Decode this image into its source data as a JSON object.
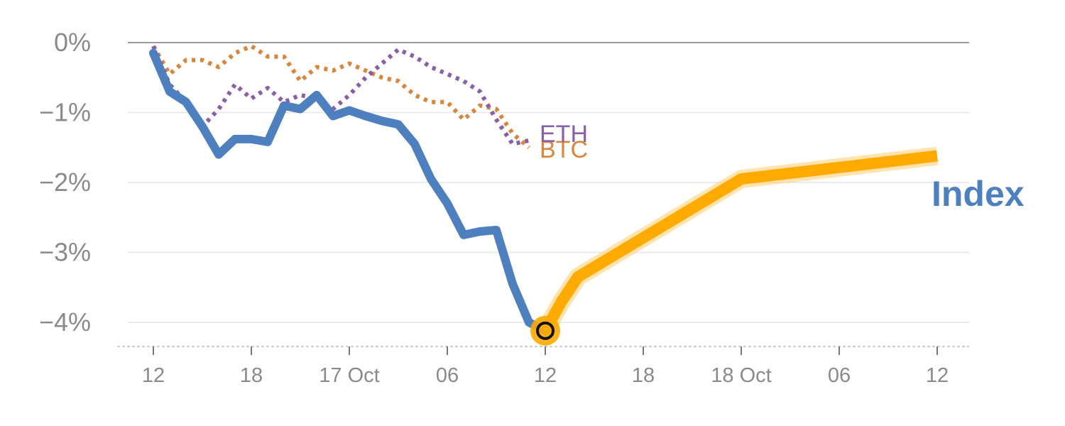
{
  "chart_data": {
    "type": "line",
    "title": "",
    "xlabel": "",
    "ylabel": "",
    "ylim": [
      -4.3,
      0
    ],
    "y_ticks": [
      {
        "value": 0,
        "label": "0%"
      },
      {
        "value": -1,
        "label": "−1%"
      },
      {
        "value": -2,
        "label": "−2%"
      },
      {
        "value": -3,
        "label": "−3%"
      },
      {
        "value": -4,
        "label": "−4%"
      }
    ],
    "x_ticks": [
      {
        "value": 0,
        "label": "12"
      },
      {
        "value": 6,
        "label": "18"
      },
      {
        "value": 12,
        "label": "17 Oct"
      },
      {
        "value": 18,
        "label": "06"
      },
      {
        "value": 24,
        "label": "12"
      },
      {
        "value": 30,
        "label": "18"
      },
      {
        "value": 36,
        "label": "18 Oct"
      },
      {
        "value": 42,
        "label": "06"
      },
      {
        "value": 48,
        "label": "12"
      }
    ],
    "x_range": [
      -1.5,
      50
    ],
    "x_unit": "hours from 16 Oct 12:00",
    "series": [
      {
        "name": "BTC",
        "label": "BTC",
        "style": "dotted",
        "color": "#d9853b",
        "x": [
          0,
          1,
          2,
          3,
          4,
          5,
          6,
          7,
          8,
          9,
          10,
          11,
          12,
          13,
          14,
          15,
          16,
          17,
          18,
          19,
          20,
          21,
          22,
          23
        ],
        "values": [
          -0.05,
          -0.45,
          -0.25,
          -0.25,
          -0.35,
          -0.15,
          -0.05,
          -0.2,
          -0.2,
          -0.55,
          -0.35,
          -0.4,
          -0.3,
          -0.4,
          -0.5,
          -0.55,
          -0.75,
          -0.85,
          -0.85,
          -1.1,
          -0.9,
          -0.95,
          -1.3,
          -1.5
        ]
      },
      {
        "name": "ETH",
        "label": "ETH",
        "style": "dotted",
        "color": "#8a5fa8",
        "x": [
          0,
          1,
          2,
          3,
          4,
          5,
          6,
          7,
          8,
          9,
          10,
          11,
          12,
          13,
          14,
          15,
          16,
          17,
          18,
          19,
          20,
          21,
          22,
          23
        ],
        "values": [
          -0.05,
          -0.6,
          -0.85,
          -1.2,
          -0.95,
          -0.6,
          -0.8,
          -0.65,
          -0.85,
          -0.75,
          -0.8,
          -0.95,
          -0.75,
          -0.5,
          -0.3,
          -0.1,
          -0.2,
          -0.35,
          -0.45,
          -0.55,
          -0.7,
          -1.1,
          -1.45,
          -1.4
        ]
      },
      {
        "name": "Index",
        "label": "Index",
        "style": "solid",
        "color": "#4e7fbf",
        "x": [
          0,
          1,
          2,
          3,
          4,
          5,
          6,
          7,
          8,
          9,
          10,
          11,
          12,
          13,
          14,
          15,
          16,
          17,
          18,
          19,
          20,
          21,
          22,
          23,
          24
        ],
        "values": [
          -0.15,
          -0.7,
          -0.85,
          -1.2,
          -1.6,
          -1.38,
          -1.38,
          -1.42,
          -0.9,
          -0.95,
          -0.75,
          -1.05,
          -0.97,
          -1.05,
          -1.12,
          -1.17,
          -1.45,
          -1.95,
          -2.3,
          -2.75,
          -2.7,
          -2.68,
          -3.45,
          -4.0,
          -4.12
        ]
      },
      {
        "name": "Index projection",
        "style": "thick-highlight",
        "color": "#ffaa00",
        "x": [
          24,
          25,
          26,
          36,
          48
        ],
        "values": [
          -4.12,
          -3.7,
          -3.35,
          -1.95,
          -1.62
        ]
      }
    ],
    "highlight_point": {
      "x": 24,
      "value": -4.12,
      "color": "#ffaa00"
    },
    "index_label": "Index"
  }
}
